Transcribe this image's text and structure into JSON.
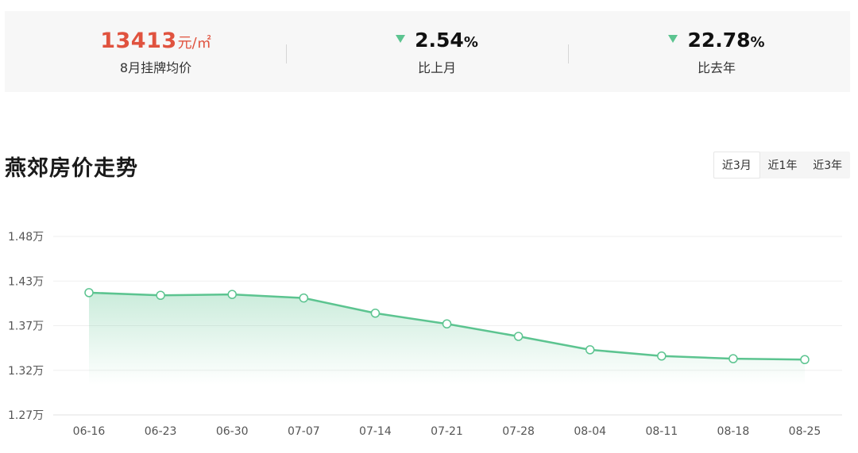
{
  "stats": {
    "price_value": "13413",
    "price_unit": "元/㎡",
    "price_label": "8月挂牌均价",
    "mom_value": "2.54",
    "mom_sign": "%",
    "mom_label": "比上月",
    "yoy_value": "22.78",
    "yoy_sign": "%",
    "yoy_label": "比去年",
    "trend_color": "#5cc490",
    "price_color": "#e0533f"
  },
  "chart_header": {
    "title": "燕郊房价走势",
    "tabs": [
      {
        "label": "近3月",
        "active": true
      },
      {
        "label": "近1年",
        "active": false
      },
      {
        "label": "近3年",
        "active": false
      }
    ]
  },
  "chart_data": {
    "type": "area",
    "title": "燕郊房价走势",
    "categories": [
      "06-16",
      "06-23",
      "06-30",
      "07-07",
      "07-14",
      "07-21",
      "07-28",
      "08-04",
      "08-11",
      "08-18",
      "08-25"
    ],
    "series": [
      {
        "values": [
          1.412,
          1.409,
          1.41,
          1.406,
          1.389,
          1.377,
          1.363,
          1.348,
          1.341,
          1.338,
          1.337
        ],
        "color": "#5cc490"
      }
    ],
    "y_tick_labels": [
      "1.27万",
      "1.32万",
      "1.37万",
      "1.43万",
      "1.48万"
    ],
    "y_tick_values": [
      1.275,
      1.325,
      1.375,
      1.425,
      1.475
    ],
    "ylim": [
      1.275,
      1.475
    ],
    "y_unit": "万",
    "grid": true,
    "legend": "none"
  }
}
